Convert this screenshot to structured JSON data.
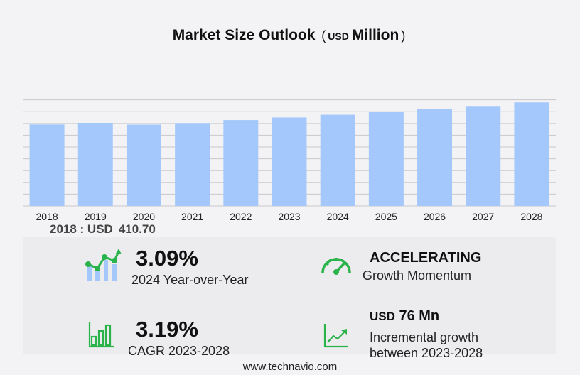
{
  "title": {
    "main": "Market Size Outlook",
    "paren_open": "(",
    "unit_prefix": "USD",
    "unit": "Million",
    "paren_close": ")"
  },
  "chart_data": {
    "type": "bar",
    "categories": [
      "2018",
      "2019",
      "2020",
      "2021",
      "2022",
      "2023",
      "2024",
      "2025",
      "2026",
      "2027",
      "2028"
    ],
    "values": [
      410.7,
      419.0,
      410.0,
      418.0,
      433.0,
      446.0,
      460.0,
      474.0,
      489.0,
      504.0,
      522.0
    ],
    "ylim": [
      0,
      530
    ],
    "grid": true,
    "bar_color": "#a4c8fb",
    "grid_color": "#c9c9cc"
  },
  "base_label": {
    "text": "2018 : USD",
    "value": "410.70"
  },
  "kpis": {
    "yoy": {
      "value": "3.09%",
      "label": "2024 Year-over-Year",
      "icon": "growth-chart-icon"
    },
    "momentum": {
      "value": "ACCELERATING",
      "label": "Growth Momentum",
      "icon": "speedometer-icon"
    },
    "cagr": {
      "value": "3.19%",
      "label": "CAGR 2023-2028",
      "icon": "bar-chart-icon"
    },
    "incremental": {
      "prefix": "USD",
      "value": "76 Mn",
      "label_line1": "Incremental growth",
      "label_line2": "between 2023-2028",
      "icon": "trend-up-icon"
    }
  },
  "accent_color": "#2ab34a",
  "footer": "www.technavio.com"
}
